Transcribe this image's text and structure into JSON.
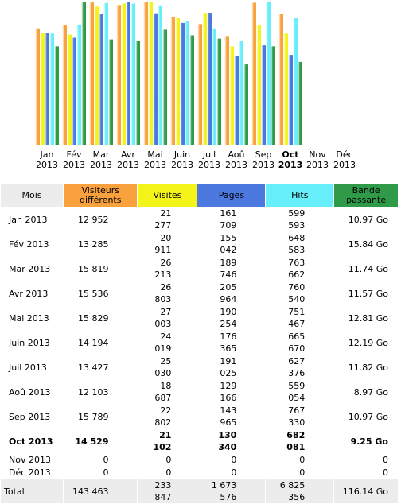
{
  "colors": {
    "visitors": "#f9a13d",
    "visits": "#f4f41b",
    "pages": "#4c79df",
    "hits": "#66eefa",
    "bandwidth": "#2f9a48",
    "header_bg": "#ececec"
  },
  "chart_data": {
    "type": "bar",
    "categories": [
      "Jan 2013",
      "Fév 2013",
      "Mar 2013",
      "Avr 2013",
      "Mai 2013",
      "Juin 2013",
      "Juil 2013",
      "Aoû 2013",
      "Sep 2013",
      "Oct 2013",
      "Nov 2013",
      "Déc 2013"
    ],
    "series": [
      {
        "values": [
          12952,
          13285,
          15819,
          15536,
          15829,
          14194,
          13427,
          12103,
          15789,
          14529,
          0,
          0
        ]
      },
      {
        "values": [
          21277,
          20911,
          26213,
          26803,
          27003,
          24019,
          25030,
          18687,
          22802,
          21102,
          0,
          0
        ]
      },
      {
        "values": [
          161709,
          155042,
          189746,
          205964,
          190254,
          176365,
          191025,
          129166,
          143965,
          130340,
          0,
          0
        ]
      },
      {
        "values": [
          599593,
          648583,
          763662,
          760540,
          751467,
          665670,
          627376,
          559054,
          767330,
          682081,
          0,
          0
        ]
      },
      {
        "values": [
          10.97,
          15.84,
          11.74,
          11.57,
          12.81,
          12.19,
          11.82,
          8.97,
          10.97,
          9.25,
          0,
          0
        ]
      }
    ],
    "legend": "none",
    "grid": false
  },
  "chart_labels": [
    {
      "month": "Jan",
      "year": "2013"
    },
    {
      "month": "Fév",
      "year": "2013"
    },
    {
      "month": "Mar",
      "year": "2013"
    },
    {
      "month": "Avr",
      "year": "2013"
    },
    {
      "month": "Mai",
      "year": "2013"
    },
    {
      "month": "Juin",
      "year": "2013"
    },
    {
      "month": "Juil",
      "year": "2013"
    },
    {
      "month": "Aoû",
      "year": "2013"
    },
    {
      "month": "Sep",
      "year": "2013"
    },
    {
      "month": "Oct",
      "year": "2013"
    },
    {
      "month": "Nov",
      "year": "2013"
    },
    {
      "month": "Déc",
      "year": "2013"
    }
  ],
  "current_month_index": 9,
  "table": {
    "headers": {
      "month": "Mois",
      "visitors": "Visiteurs différents",
      "visits": "Visites",
      "pages": "Pages",
      "hits": "Hits",
      "bandwidth": "Bande passante"
    },
    "rows": [
      {
        "month": "Jan 2013",
        "visitors": "12 952",
        "visits": "21 277",
        "pages": "161 709",
        "hits": "599 593",
        "bandwidth": "10.97 Go"
      },
      {
        "month": "Fév 2013",
        "visitors": "13 285",
        "visits": "20 911",
        "pages": "155 042",
        "hits": "648 583",
        "bandwidth": "15.84 Go"
      },
      {
        "month": "Mar 2013",
        "visitors": "15 819",
        "visits": "26 213",
        "pages": "189 746",
        "hits": "763 662",
        "bandwidth": "11.74 Go"
      },
      {
        "month": "Avr 2013",
        "visitors": "15 536",
        "visits": "26 803",
        "pages": "205 964",
        "hits": "760 540",
        "bandwidth": "11.57 Go"
      },
      {
        "month": "Mai 2013",
        "visitors": "15 829",
        "visits": "27 003",
        "pages": "190 254",
        "hits": "751 467",
        "bandwidth": "12.81 Go"
      },
      {
        "month": "Juin 2013",
        "visitors": "14 194",
        "visits": "24 019",
        "pages": "176 365",
        "hits": "665 670",
        "bandwidth": "12.19 Go"
      },
      {
        "month": "Juil 2013",
        "visitors": "13 427",
        "visits": "25 030",
        "pages": "191 025",
        "hits": "627 376",
        "bandwidth": "11.82 Go"
      },
      {
        "month": "Aoû 2013",
        "visitors": "12 103",
        "visits": "18 687",
        "pages": "129 166",
        "hits": "559 054",
        "bandwidth": "8.97 Go"
      },
      {
        "month": "Sep 2013",
        "visitors": "15 789",
        "visits": "22 802",
        "pages": "143 965",
        "hits": "767 330",
        "bandwidth": "10.97 Go"
      },
      {
        "month": "Oct 2013",
        "visitors": "14 529",
        "visits": "21 102",
        "pages": "130 340",
        "hits": "682 081",
        "bandwidth": "9.25 Go"
      },
      {
        "month": "Nov 2013",
        "visitors": "0",
        "visits": "0",
        "pages": "0",
        "hits": "0",
        "bandwidth": "0"
      },
      {
        "month": "Déc 2013",
        "visitors": "0",
        "visits": "0",
        "pages": "0",
        "hits": "0",
        "bandwidth": "0"
      }
    ],
    "total": {
      "month": "Total",
      "visitors": "143 463",
      "visits": "233 847",
      "pages": "1 673 576",
      "hits": "6 825 356",
      "bandwidth": "116.14 Go"
    }
  }
}
